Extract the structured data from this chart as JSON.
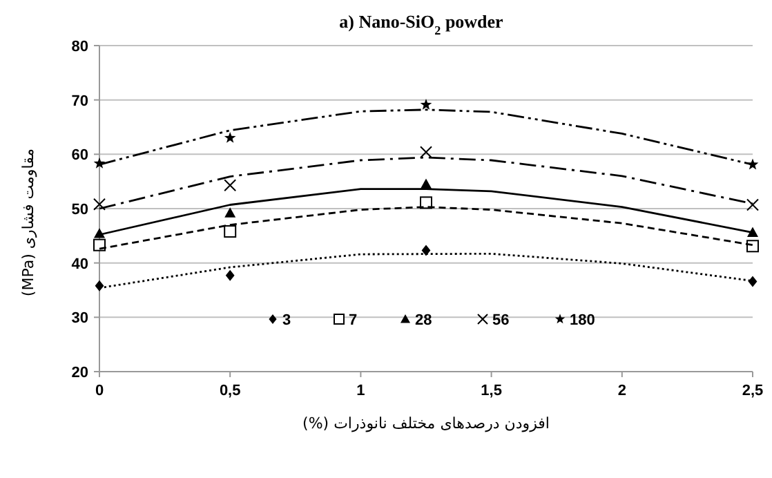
{
  "chart_data": {
    "type": "scatter",
    "title": "a) Nano-SiO$_{2}$ powder",
    "xlabel": "افزودن درصدهای مختلف نانوذرات (%)",
    "ylabel": "مقاومت فشاری (MPa)",
    "x": [
      0,
      0.5,
      1.25,
      2.5
    ],
    "series": [
      {
        "name": "3",
        "color": "#000000",
        "marker": "diamond",
        "values": [
          35.8,
          37.7,
          42.3,
          36.6
        ]
      },
      {
        "name": "7",
        "color": "#000000",
        "marker": "square",
        "values": [
          43.3,
          45.8,
          51.1,
          43.1
        ]
      },
      {
        "name": "28",
        "color": "#000000",
        "marker": "triangle",
        "values": [
          45.4,
          49.2,
          54.5,
          45.6
        ]
      },
      {
        "name": "56",
        "color": "#000000",
        "marker": "cross",
        "values": [
          50.8,
          54.3,
          60.4,
          50.7
        ]
      },
      {
        "name": "180",
        "color": "#000000",
        "marker": "star",
        "values": [
          58.3,
          63.0,
          69.1,
          58.1
        ]
      },
      {
        "type": "line",
        "color": "#000000",
        "line_style": "dotted",
        "x": [
          0,
          0.5,
          1,
          1.5,
          2,
          2.5
        ],
        "values": [
          35.4,
          39.2,
          41.6,
          41.7,
          39.9,
          36.7
        ]
      },
      {
        "type": "line",
        "color": "#000000",
        "line_style": "dashed",
        "x": [
          0,
          0.5,
          1,
          1.25,
          1.5,
          2,
          2.5
        ],
        "values": [
          42.6,
          47.0,
          49.8,
          50.3,
          49.8,
          47.3,
          43.3
        ]
      },
      {
        "type": "line",
        "color": "#000000",
        "line_style": "solid",
        "x": [
          0,
          0.5,
          1,
          1.25,
          1.5,
          2,
          2.5
        ],
        "values": [
          45.2,
          50.7,
          53.6,
          53.6,
          53.2,
          50.3,
          45.6
        ]
      },
      {
        "type": "line",
        "color": "#000000",
        "line_style": "dashdot",
        "x": [
          0,
          0.5,
          1,
          1.25,
          1.5,
          2,
          2.5
        ],
        "values": [
          50.0,
          55.9,
          58.9,
          59.4,
          58.9,
          56.0,
          50.9
        ]
      },
      {
        "type": "line",
        "color": "#000000",
        "line_style": "dashdotdot",
        "x": [
          0,
          0.5,
          1,
          1.25,
          1.5,
          2,
          2.5
        ],
        "values": [
          58.1,
          64.4,
          67.9,
          68.2,
          67.8,
          63.8,
          58.1
        ]
      }
    ],
    "xlim": [
      0,
      2.5
    ],
    "ylim": [
      20,
      80
    ],
    "xticks": [
      0,
      {
        "value": 0.5,
        "label": "0,5"
      },
      1,
      {
        "value": 1.5,
        "label": "1,5"
      },
      2,
      {
        "value": 2.5,
        "label": "2,5"
      }
    ],
    "yticks": [
      20,
      30,
      40,
      50,
      60,
      70,
      80
    ],
    "grid": "y",
    "legend": "bottom"
  }
}
